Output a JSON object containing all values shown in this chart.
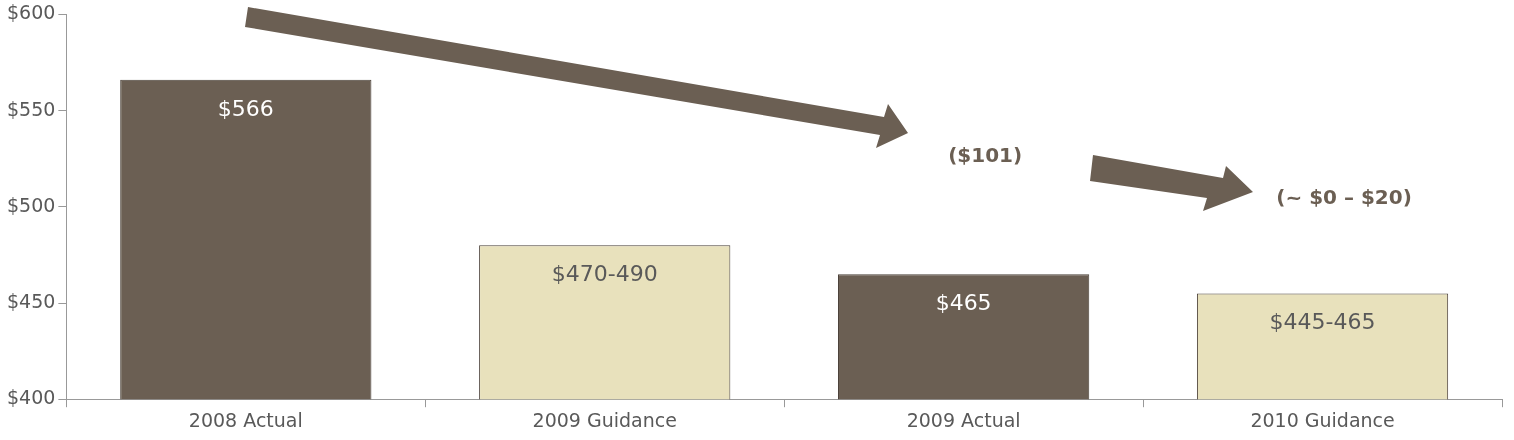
{
  "chart_data": {
    "type": "bar",
    "categories": [
      "2008 Actual",
      "2009 Guidance",
      "2009 Actual",
      "2010 Guidance"
    ],
    "values": [
      566,
      480,
      465,
      455
    ],
    "colors": [
      "#6b5f53",
      "#e8e1bc",
      "#6b5f53",
      "#e8e1bc"
    ],
    "value_labels": [
      "$566",
      "$470-490",
      "$465",
      "$445-465"
    ],
    "ylim": [
      400,
      600
    ],
    "yticks": [
      {
        "value": 400,
        "label": "$400"
      },
      {
        "value": 450,
        "label": "$450"
      },
      {
        "value": 500,
        "label": "$500"
      },
      {
        "value": 550,
        "label": "$550"
      },
      {
        "value": 600,
        "label": "$600"
      }
    ],
    "annotations": [
      "($101)",
      "(~ $0 – $20)"
    ],
    "grid": false,
    "legend": false
  }
}
